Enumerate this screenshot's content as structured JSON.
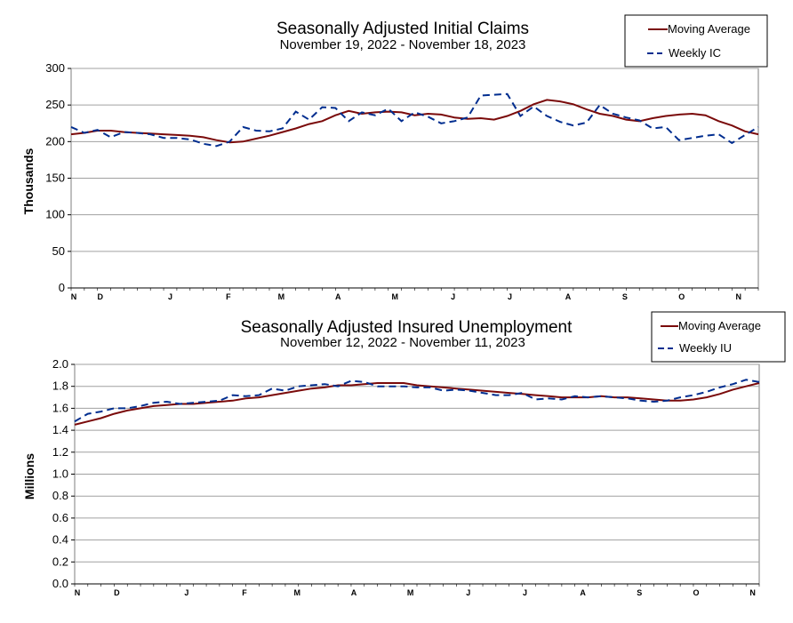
{
  "colors": {
    "moving_average": "#7a0a0a",
    "weekly": "#002d8f",
    "grid": "#a0a0a0",
    "axis": "#7f7f7f"
  },
  "chart_data": [
    {
      "type": "line",
      "title": "Seasonally Adjusted Initial Claims",
      "subtitle": "November 19, 2022 - November 18, 2023",
      "ylabel": "Thousands",
      "xlabel": "",
      "ylim": [
        0,
        300
      ],
      "yticks": [
        "0",
        "50",
        "100",
        "150",
        "200",
        "250",
        "300"
      ],
      "grid": true,
      "legend_position": "top-right",
      "x_month_labels": [
        {
          "label": "N",
          "week": 0
        },
        {
          "label": "D",
          "week": 2
        },
        {
          "label": "J",
          "week": 7.3
        },
        {
          "label": "F",
          "week": 11.7
        },
        {
          "label": "M",
          "week": 15.7
        },
        {
          "label": "A",
          "week": 20.0
        },
        {
          "label": "M",
          "week": 24.3
        },
        {
          "label": "J",
          "week": 28.7
        },
        {
          "label": "J",
          "week": 33.0
        },
        {
          "label": "A",
          "week": 37.4
        },
        {
          "label": "S",
          "week": 41.7
        },
        {
          "label": "O",
          "week": 46.0
        },
        {
          "label": "N",
          "week": 50.3
        }
      ],
      "weeks": 53,
      "series": [
        {
          "name": "Moving Average",
          "style": "solid",
          "values": [
            210,
            212,
            215,
            215,
            213,
            212,
            211,
            210,
            209,
            208,
            206,
            202,
            199,
            200,
            204,
            208,
            213,
            218,
            224,
            228,
            236,
            242,
            238,
            240,
            241,
            240,
            236,
            238,
            237,
            233,
            231,
            232,
            230,
            235,
            242,
            251,
            257,
            255,
            251,
            244,
            238,
            235,
            230,
            228,
            232,
            235,
            237,
            238,
            236,
            228,
            222,
            214,
            210
          ]
        },
        {
          "name": "Weekly IC",
          "style": "dashed",
          "values": [
            220,
            212,
            216,
            206,
            213,
            212,
            210,
            205,
            205,
            203,
            197,
            194,
            200,
            220,
            215,
            214,
            218,
            241,
            230,
            247,
            246,
            228,
            240,
            236,
            245,
            228,
            240,
            234,
            225,
            228,
            233,
            263,
            264,
            265,
            235,
            248,
            235,
            227,
            222,
            226,
            250,
            238,
            233,
            229,
            218,
            220,
            202,
            205,
            208,
            210,
            198,
            209,
            220
          ]
        }
      ]
    },
    {
      "type": "line",
      "title": "Seasonally Adjusted Insured Unemployment",
      "subtitle": "November 12, 2022 - November 11, 2023",
      "ylabel": "Millions",
      "xlabel": "",
      "ylim": [
        0.0,
        2.0
      ],
      "yticks": [
        "0.0",
        "0.2",
        "0.4",
        "0.6",
        "0.8",
        "1.0",
        "1.2",
        "1.4",
        "1.6",
        "1.8",
        "2.0"
      ],
      "grid": true,
      "legend_position": "top-right",
      "x_month_labels": [
        {
          "label": "N",
          "week": 0
        },
        {
          "label": "D",
          "week": 3
        },
        {
          "label": "J",
          "week": 8.3
        },
        {
          "label": "F",
          "week": 12.7
        },
        {
          "label": "M",
          "week": 16.7
        },
        {
          "label": "A",
          "week": 21.0
        },
        {
          "label": "M",
          "week": 25.3
        },
        {
          "label": "J",
          "week": 29.7
        },
        {
          "label": "J",
          "week": 34.0
        },
        {
          "label": "A",
          "week": 38.4
        },
        {
          "label": "S",
          "week": 42.7
        },
        {
          "label": "O",
          "week": 47.0
        },
        {
          "label": "N",
          "week": 51.3
        }
      ],
      "weeks": 53,
      "series": [
        {
          "name": "Moving Average",
          "style": "solid",
          "values": [
            1.45,
            1.48,
            1.51,
            1.55,
            1.58,
            1.6,
            1.62,
            1.63,
            1.64,
            1.64,
            1.65,
            1.66,
            1.67,
            1.69,
            1.7,
            1.72,
            1.74,
            1.76,
            1.78,
            1.79,
            1.81,
            1.81,
            1.82,
            1.83,
            1.83,
            1.83,
            1.81,
            1.8,
            1.79,
            1.78,
            1.77,
            1.76,
            1.75,
            1.74,
            1.73,
            1.72,
            1.71,
            1.7,
            1.7,
            1.7,
            1.71,
            1.7,
            1.7,
            1.69,
            1.68,
            1.67,
            1.67,
            1.68,
            1.7,
            1.73,
            1.77,
            1.8,
            1.83
          ]
        },
        {
          "name": "Weekly IU",
          "style": "dashed",
          "values": [
            1.48,
            1.55,
            1.57,
            1.6,
            1.6,
            1.62,
            1.65,
            1.66,
            1.64,
            1.65,
            1.66,
            1.67,
            1.72,
            1.71,
            1.72,
            1.78,
            1.76,
            1.8,
            1.81,
            1.82,
            1.8,
            1.85,
            1.84,
            1.8,
            1.8,
            1.8,
            1.79,
            1.79,
            1.76,
            1.77,
            1.76,
            1.74,
            1.72,
            1.72,
            1.74,
            1.68,
            1.69,
            1.68,
            1.71,
            1.7,
            1.71,
            1.7,
            1.69,
            1.67,
            1.66,
            1.67,
            1.7,
            1.72,
            1.75,
            1.79,
            1.82,
            1.86,
            1.84
          ]
        }
      ]
    }
  ]
}
